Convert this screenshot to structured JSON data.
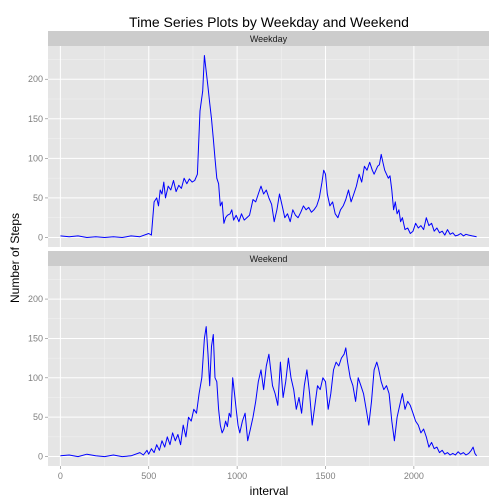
{
  "chart_data": {
    "type": "line",
    "title": "Time Series Plots by Weekday and Weekend",
    "xlabel": "interval",
    "ylabel": "Number of Steps",
    "xlim": [
      -70,
      2425
    ],
    "ylim": [
      -12,
      242
    ],
    "x_ticks": [
      0,
      500,
      1000,
      1500,
      2000
    ],
    "y_ticks": [
      0,
      50,
      100,
      150,
      200
    ],
    "grid": true,
    "line_color": "#0000ff",
    "panel_bg": "#e5e5e5",
    "strip_bg": "#cccccc",
    "panels": [
      {
        "name": "Weekday",
        "points": [
          [
            0,
            2
          ],
          [
            50,
            1
          ],
          [
            100,
            2
          ],
          [
            150,
            0
          ],
          [
            200,
            1
          ],
          [
            250,
            0
          ],
          [
            300,
            1
          ],
          [
            350,
            0
          ],
          [
            400,
            2
          ],
          [
            450,
            1
          ],
          [
            500,
            5
          ],
          [
            515,
            3
          ],
          [
            530,
            45
          ],
          [
            545,
            50
          ],
          [
            555,
            40
          ],
          [
            565,
            60
          ],
          [
            575,
            55
          ],
          [
            585,
            70
          ],
          [
            595,
            50
          ],
          [
            610,
            65
          ],
          [
            625,
            60
          ],
          [
            640,
            72
          ],
          [
            655,
            58
          ],
          [
            670,
            66
          ],
          [
            685,
            62
          ],
          [
            700,
            75
          ],
          [
            715,
            68
          ],
          [
            730,
            74
          ],
          [
            745,
            70
          ],
          [
            760,
            72
          ],
          [
            775,
            80
          ],
          [
            790,
            160
          ],
          [
            805,
            185
          ],
          [
            815,
            230
          ],
          [
            825,
            210
          ],
          [
            835,
            190
          ],
          [
            845,
            170
          ],
          [
            855,
            150
          ],
          [
            865,
            125
          ],
          [
            875,
            100
          ],
          [
            885,
            75
          ],
          [
            895,
            68
          ],
          [
            905,
            40
          ],
          [
            915,
            45
          ],
          [
            925,
            18
          ],
          [
            935,
            25
          ],
          [
            945,
            28
          ],
          [
            960,
            30
          ],
          [
            970,
            35
          ],
          [
            980,
            22
          ],
          [
            995,
            28
          ],
          [
            1010,
            20
          ],
          [
            1025,
            30
          ],
          [
            1040,
            22
          ],
          [
            1055,
            25
          ],
          [
            1070,
            28
          ],
          [
            1090,
            48
          ],
          [
            1105,
            45
          ],
          [
            1120,
            55
          ],
          [
            1135,
            65
          ],
          [
            1150,
            55
          ],
          [
            1165,
            60
          ],
          [
            1180,
            50
          ],
          [
            1195,
            42
          ],
          [
            1210,
            20
          ],
          [
            1225,
            35
          ],
          [
            1240,
            55
          ],
          [
            1255,
            40
          ],
          [
            1270,
            25
          ],
          [
            1285,
            30
          ],
          [
            1300,
            20
          ],
          [
            1315,
            35
          ],
          [
            1330,
            28
          ],
          [
            1345,
            25
          ],
          [
            1360,
            32
          ],
          [
            1375,
            40
          ],
          [
            1390,
            35
          ],
          [
            1405,
            38
          ],
          [
            1420,
            32
          ],
          [
            1435,
            35
          ],
          [
            1450,
            40
          ],
          [
            1465,
            50
          ],
          [
            1480,
            70
          ],
          [
            1490,
            85
          ],
          [
            1500,
            80
          ],
          [
            1510,
            55
          ],
          [
            1525,
            40
          ],
          [
            1540,
            45
          ],
          [
            1555,
            30
          ],
          [
            1570,
            25
          ],
          [
            1585,
            35
          ],
          [
            1600,
            40
          ],
          [
            1615,
            48
          ],
          [
            1630,
            60
          ],
          [
            1645,
            45
          ],
          [
            1660,
            55
          ],
          [
            1675,
            65
          ],
          [
            1690,
            80
          ],
          [
            1705,
            70
          ],
          [
            1720,
            90
          ],
          [
            1735,
            85
          ],
          [
            1750,
            95
          ],
          [
            1765,
            85
          ],
          [
            1775,
            80
          ],
          [
            1785,
            85
          ],
          [
            1795,
            90
          ],
          [
            1805,
            92
          ],
          [
            1815,
            105
          ],
          [
            1825,
            95
          ],
          [
            1835,
            85
          ],
          [
            1845,
            80
          ],
          [
            1855,
            75
          ],
          [
            1865,
            78
          ],
          [
            1875,
            60
          ],
          [
            1885,
            35
          ],
          [
            1895,
            45
          ],
          [
            1905,
            30
          ],
          [
            1915,
            35
          ],
          [
            1925,
            20
          ],
          [
            1935,
            25
          ],
          [
            1950,
            10
          ],
          [
            1965,
            12
          ],
          [
            1980,
            5
          ],
          [
            1995,
            8
          ],
          [
            2010,
            18
          ],
          [
            2025,
            12
          ],
          [
            2040,
            15
          ],
          [
            2055,
            10
          ],
          [
            2070,
            25
          ],
          [
            2085,
            15
          ],
          [
            2100,
            18
          ],
          [
            2115,
            8
          ],
          [
            2130,
            12
          ],
          [
            2145,
            6
          ],
          [
            2160,
            8
          ],
          [
            2175,
            3
          ],
          [
            2190,
            10
          ],
          [
            2205,
            4
          ],
          [
            2220,
            6
          ],
          [
            2235,
            2
          ],
          [
            2250,
            3
          ],
          [
            2265,
            5
          ],
          [
            2280,
            2
          ],
          [
            2295,
            4
          ],
          [
            2310,
            3
          ],
          [
            2330,
            2
          ],
          [
            2355,
            1
          ]
        ]
      },
      {
        "name": "Weekend",
        "points": [
          [
            0,
            1
          ],
          [
            50,
            2
          ],
          [
            100,
            0
          ],
          [
            150,
            3
          ],
          [
            200,
            1
          ],
          [
            250,
            0
          ],
          [
            300,
            2
          ],
          [
            350,
            0
          ],
          [
            400,
            1
          ],
          [
            450,
            5
          ],
          [
            470,
            2
          ],
          [
            490,
            8
          ],
          [
            500,
            3
          ],
          [
            515,
            10
          ],
          [
            530,
            5
          ],
          [
            545,
            15
          ],
          [
            560,
            8
          ],
          [
            575,
            20
          ],
          [
            590,
            12
          ],
          [
            605,
            25
          ],
          [
            620,
            15
          ],
          [
            635,
            30
          ],
          [
            650,
            20
          ],
          [
            665,
            28
          ],
          [
            680,
            15
          ],
          [
            695,
            40
          ],
          [
            710,
            25
          ],
          [
            725,
            50
          ],
          [
            740,
            45
          ],
          [
            755,
            60
          ],
          [
            770,
            55
          ],
          [
            785,
            80
          ],
          [
            800,
            100
          ],
          [
            815,
            150
          ],
          [
            825,
            165
          ],
          [
            835,
            130
          ],
          [
            845,
            90
          ],
          [
            855,
            140
          ],
          [
            865,
            155
          ],
          [
            875,
            100
          ],
          [
            885,
            95
          ],
          [
            895,
            60
          ],
          [
            905,
            40
          ],
          [
            915,
            30
          ],
          [
            925,
            35
          ],
          [
            935,
            45
          ],
          [
            945,
            38
          ],
          [
            955,
            55
          ],
          [
            965,
            50
          ],
          [
            975,
            100
          ],
          [
            985,
            80
          ],
          [
            995,
            60
          ],
          [
            1005,
            40
          ],
          [
            1015,
            30
          ],
          [
            1030,
            45
          ],
          [
            1045,
            55
          ],
          [
            1060,
            20
          ],
          [
            1075,
            35
          ],
          [
            1090,
            50
          ],
          [
            1105,
            70
          ],
          [
            1120,
            95
          ],
          [
            1135,
            110
          ],
          [
            1150,
            85
          ],
          [
            1165,
            115
          ],
          [
            1180,
            130
          ],
          [
            1190,
            110
          ],
          [
            1200,
            90
          ],
          [
            1215,
            80
          ],
          [
            1230,
            65
          ],
          [
            1245,
            120
          ],
          [
            1260,
            75
          ],
          [
            1275,
            95
          ],
          [
            1290,
            125
          ],
          [
            1305,
            100
          ],
          [
            1320,
            85
          ],
          [
            1335,
            60
          ],
          [
            1350,
            75
          ],
          [
            1365,
            55
          ],
          [
            1380,
            90
          ],
          [
            1395,
            110
          ],
          [
            1410,
            80
          ],
          [
            1425,
            40
          ],
          [
            1440,
            65
          ],
          [
            1455,
            90
          ],
          [
            1470,
            85
          ],
          [
            1485,
            100
          ],
          [
            1500,
            95
          ],
          [
            1515,
            60
          ],
          [
            1530,
            80
          ],
          [
            1545,
            110
          ],
          [
            1560,
            120
          ],
          [
            1575,
            115
          ],
          [
            1590,
            125
          ],
          [
            1605,
            130
          ],
          [
            1615,
            138
          ],
          [
            1625,
            120
          ],
          [
            1640,
            100
          ],
          [
            1655,
            90
          ],
          [
            1670,
            70
          ],
          [
            1685,
            100
          ],
          [
            1700,
            90
          ],
          [
            1715,
            80
          ],
          [
            1730,
            60
          ],
          [
            1745,
            40
          ],
          [
            1760,
            70
          ],
          [
            1775,
            110
          ],
          [
            1790,
            120
          ],
          [
            1800,
            112
          ],
          [
            1815,
            95
          ],
          [
            1830,
            85
          ],
          [
            1845,
            90
          ],
          [
            1860,
            80
          ],
          [
            1875,
            45
          ],
          [
            1890,
            20
          ],
          [
            1905,
            50
          ],
          [
            1920,
            65
          ],
          [
            1935,
            80
          ],
          [
            1950,
            60
          ],
          [
            1965,
            70
          ],
          [
            1980,
            65
          ],
          [
            1995,
            55
          ],
          [
            2010,
            45
          ],
          [
            2025,
            40
          ],
          [
            2040,
            30
          ],
          [
            2055,
            35
          ],
          [
            2070,
            25
          ],
          [
            2085,
            12
          ],
          [
            2100,
            18
          ],
          [
            2115,
            10
          ],
          [
            2130,
            12
          ],
          [
            2145,
            5
          ],
          [
            2160,
            8
          ],
          [
            2175,
            3
          ],
          [
            2190,
            5
          ],
          [
            2205,
            2
          ],
          [
            2220,
            4
          ],
          [
            2235,
            2
          ],
          [
            2250,
            6
          ],
          [
            2265,
            3
          ],
          [
            2280,
            5
          ],
          [
            2295,
            2
          ],
          [
            2310,
            4
          ],
          [
            2325,
            8
          ],
          [
            2335,
            12
          ],
          [
            2345,
            4
          ],
          [
            2355,
            1
          ]
        ]
      }
    ]
  }
}
